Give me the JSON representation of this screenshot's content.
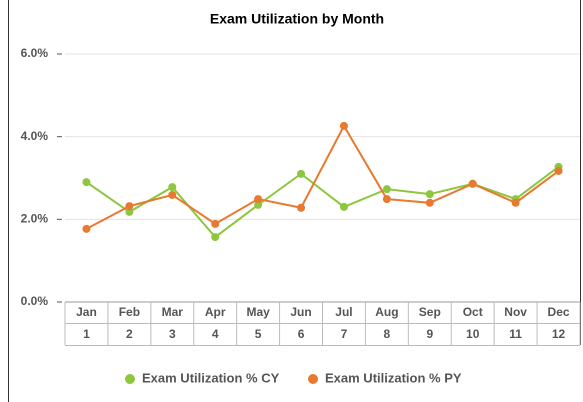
{
  "chart_data": {
    "type": "line",
    "title": "Exam Utilization by Month",
    "categories": [
      "Jan",
      "Feb",
      "Mar",
      "Apr",
      "May",
      "Jun",
      "Jul",
      "Aug",
      "Sep",
      "Oct",
      "Nov",
      "Dec"
    ],
    "sub_categories": [
      1,
      2,
      3,
      4,
      5,
      6,
      7,
      8,
      9,
      10,
      11,
      12
    ],
    "series": [
      {
        "name": "Exam Utilization % CY",
        "color": "#8dc63f",
        "values": [
          2.9,
          2.18,
          2.78,
          1.57,
          2.35,
          3.1,
          2.3,
          2.73,
          2.61,
          2.86,
          2.49,
          3.27
        ]
      },
      {
        "name": "Exam Utilization % PY",
        "color": "#e8792f",
        "values": [
          1.77,
          2.32,
          2.59,
          1.89,
          2.49,
          2.28,
          4.26,
          2.49,
          2.4,
          2.86,
          2.4,
          3.17
        ]
      }
    ],
    "ylim": [
      0,
      6
    ],
    "yticks": [
      {
        "value": 0,
        "label": "0.0%"
      },
      {
        "value": 2,
        "label": "2.0%"
      },
      {
        "value": 4,
        "label": "4.0%"
      },
      {
        "value": 6,
        "label": "6.0%"
      }
    ],
    "grid": true
  }
}
